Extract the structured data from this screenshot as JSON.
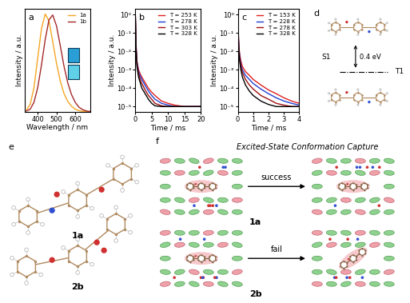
{
  "chart_data": [
    {
      "type": "line",
      "title": "a",
      "x": [
        340,
        360,
        380,
        400,
        420,
        440,
        460,
        480,
        500,
        520,
        540,
        560,
        580,
        600,
        620,
        640,
        660,
        680
      ],
      "xlim": [
        330,
        680
      ],
      "xticks": [
        400,
        500,
        600
      ],
      "ylim": [
        0,
        1.05
      ],
      "tick_labels": "x",
      "x_label": "Wavelength / nm",
      "y_label": "Intensity / a.u.",
      "legend": "upper right",
      "series": [
        {
          "name": "1a",
          "color": "#f5a623",
          "values": [
            0.02,
            0.08,
            0.25,
            0.55,
            0.85,
            1.0,
            0.93,
            0.72,
            0.5,
            0.32,
            0.19,
            0.11,
            0.06,
            0.03,
            0.015,
            0.008,
            0.004,
            0.002
          ]
        },
        {
          "name": "1b",
          "color": "#a52a2a",
          "values": [
            0.01,
            0.03,
            0.1,
            0.25,
            0.48,
            0.74,
            0.94,
            0.99,
            0.88,
            0.68,
            0.47,
            0.3,
            0.18,
            0.1,
            0.05,
            0.025,
            0.012,
            0.006
          ]
        }
      ]
    },
    {
      "type": "line",
      "title": "b",
      "log": "y",
      "x": [
        0,
        0.25,
        0.5,
        1,
        1.5,
        2,
        3,
        4,
        5,
        6,
        8,
        10,
        12,
        15,
        18,
        20
      ],
      "xlim": [
        0,
        20
      ],
      "xticks": [
        0,
        5,
        10,
        15,
        20
      ],
      "ylim": [
        5e-06,
        2
      ],
      "yticks": [
        {
          "value": 1,
          "label": "10⁰"
        },
        {
          "value": 0.1,
          "label": "10⁻¹"
        },
        {
          "value": 0.01,
          "label": "10⁻²"
        },
        {
          "value": 0.001,
          "label": "10⁻³"
        },
        {
          "value": 0.0001,
          "label": "10⁻⁴"
        },
        {
          "value": 1e-05,
          "label": "10⁻⁵"
        }
      ],
      "x_label": "Time / ms",
      "y_label": "Intensity / a.u.",
      "legend": "upper right",
      "series": [
        {
          "name": "T = 253 K",
          "color": "#e02020",
          "values": [
            1,
            0.02,
            0.003,
            0.001,
            0.0006,
            0.0004,
            0.0002,
            0.0001,
            6e-05,
            4e-05,
            2e-05,
            1.5e-05,
            1.2e-05,
            1e-05,
            1e-05,
            1e-05
          ]
        },
        {
          "name": "T = 278 K",
          "color": "#2040d0",
          "values": [
            1,
            0.015,
            0.0025,
            0.0008,
            0.00045,
            0.0003,
            0.00014,
            7e-05,
            4e-05,
            2.5e-05,
            1.5e-05,
            1.2e-05,
            1e-05,
            1e-05,
            1e-05,
            1e-05
          ]
        },
        {
          "name": "T = 303 K",
          "color": "#a01010",
          "values": [
            1,
            0.012,
            0.002,
            0.0006,
            0.0003,
            0.00018,
            8e-05,
            4e-05,
            2.5e-05,
            1.5e-05,
            1.1e-05,
            1e-05,
            1e-05,
            1e-05,
            1e-05,
            1e-05
          ]
        },
        {
          "name": "T = 328 K",
          "color": "#000000",
          "values": [
            1,
            0.01,
            0.0015,
            0.0004,
            0.0002,
            0.0001,
            5e-05,
            2.5e-05,
            1.5e-05,
            1.1e-05,
            1e-05,
            1e-05,
            1e-05,
            1e-05,
            1e-05,
            1e-05
          ]
        }
      ]
    },
    {
      "type": "line",
      "title": "c",
      "log": "y",
      "x": [
        0,
        0.05,
        0.1,
        0.2,
        0.3,
        0.5,
        0.75,
        1,
        1.5,
        2,
        2.5,
        3,
        3.5,
        4
      ],
      "xlim": [
        0,
        4
      ],
      "xticks": [
        0,
        1,
        2,
        3,
        4
      ],
      "ylim": [
        5e-06,
        2
      ],
      "yticks": [
        {
          "value": 1,
          "label": "10⁰"
        },
        {
          "value": 0.1,
          "label": "10⁻¹"
        },
        {
          "value": 0.01,
          "label": "10⁻²"
        },
        {
          "value": 0.001,
          "label": "10⁻³"
        },
        {
          "value": 0.0001,
          "label": "10⁻⁴"
        },
        {
          "value": 1e-05,
          "label": "10⁻⁵"
        }
      ],
      "x_label": "Time / ms",
      "y_label": "Intensity / a.u.",
      "legend": "upper right",
      "series": [
        {
          "name": "T = 153 K",
          "color": "#e02020",
          "values": [
            1,
            0.05,
            0.01,
            0.003,
            0.0015,
            0.0008,
            0.0005,
            0.0003,
            0.00015,
            8e-05,
            5e-05,
            3e-05,
            2e-05,
            1.5e-05
          ]
        },
        {
          "name": "T = 228 K",
          "color": "#2040d0",
          "values": [
            1,
            0.04,
            0.008,
            0.002,
            0.001,
            0.0005,
            0.0003,
            0.00018,
            9e-05,
            5e-05,
            3e-05,
            2e-05,
            1.5e-05,
            1.2e-05
          ]
        },
        {
          "name": "T = 278 K",
          "color": "#a01010",
          "values": [
            1,
            0.03,
            0.006,
            0.0015,
            0.0007,
            0.0003,
            0.00015,
            9e-05,
            4e-05,
            2.5e-05,
            1.5e-05,
            1.2e-05,
            1e-05,
            1e-05
          ]
        },
        {
          "name": "T = 328 K",
          "color": "#000000",
          "values": [
            1,
            0.02,
            0.004,
            0.001,
            0.0004,
            0.00015,
            7e-05,
            4e-05,
            2e-05,
            1.3e-05,
            1e-05,
            1e-05,
            1e-05,
            1e-05
          ]
        }
      ]
    }
  ],
  "diagrams": {
    "d": {
      "title": "d",
      "upper_state": "S1",
      "lower_state": "T1",
      "gap": "0.4 eV"
    },
    "e": {
      "title": "e",
      "molecules": [
        "1a",
        "2b"
      ]
    },
    "f": {
      "title": "f",
      "heading": "Excited-State Conformation Capture",
      "rows": [
        {
          "molecule": "1a",
          "result": "success"
        },
        {
          "molecule": "2b",
          "result": "fail"
        }
      ]
    }
  }
}
